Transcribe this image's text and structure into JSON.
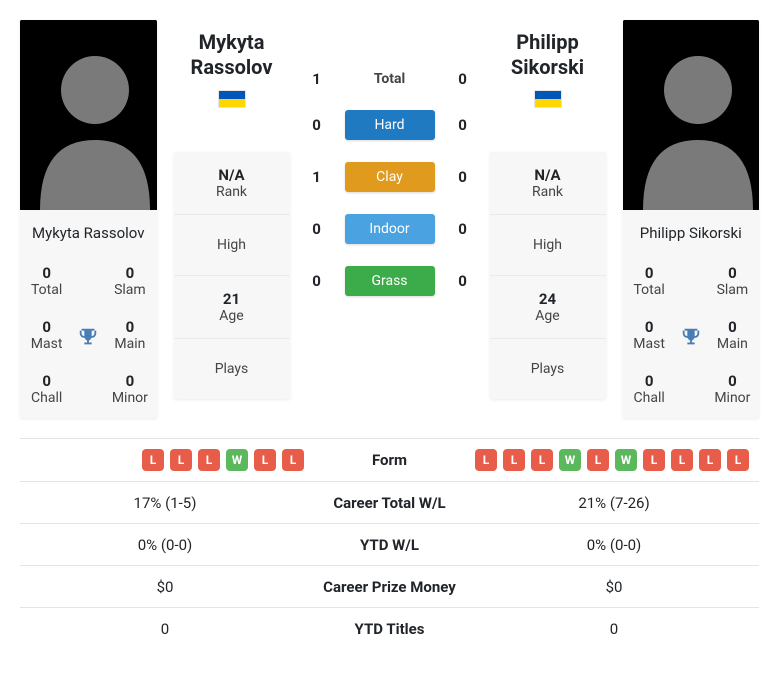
{
  "colors": {
    "loss_badge": "#e85d4a",
    "win_badge": "#5cb85c",
    "card_bg": "#f7f7f7",
    "trophy": "#4a7db5",
    "hard": "#1f7ac2",
    "clay": "#e09b1f",
    "indoor": "#4aa3e0",
    "grass": "#3cab4a",
    "silhouette": "#7a7a7a"
  },
  "left": {
    "name": "Mykyta Rassolov",
    "first": "Mykyta",
    "last": "Rassolov",
    "flag": "ukraine",
    "stats": {
      "total": "0",
      "slam": "0",
      "mast": "0",
      "main": "0",
      "chall": "0",
      "minor": "0"
    },
    "labels": {
      "total": "Total",
      "slam": "Slam",
      "mast": "Mast",
      "main": "Main",
      "chall": "Chall",
      "minor": "Minor"
    },
    "info": {
      "rank": "N/A",
      "high": "",
      "age": "21",
      "plays": ""
    }
  },
  "right": {
    "name": "Philipp Sikorski",
    "first": "Philipp",
    "last": "Sikorski",
    "flag": "ukraine",
    "stats": {
      "total": "0",
      "slam": "0",
      "mast": "0",
      "main": "0",
      "chall": "0",
      "minor": "0"
    },
    "labels": {
      "total": "Total",
      "slam": "Slam",
      "mast": "Mast",
      "main": "Main",
      "chall": "Chall",
      "minor": "Minor"
    },
    "info": {
      "rank": "N/A",
      "high": "",
      "age": "24",
      "plays": ""
    }
  },
  "info_labels": {
    "rank": "Rank",
    "high": "High",
    "age": "Age",
    "plays": "Plays"
  },
  "h2h": {
    "rows": [
      {
        "left": "1",
        "label": "Total",
        "right": "0",
        "pill": false
      },
      {
        "left": "0",
        "label": "Hard",
        "right": "0",
        "pill": true,
        "color": "#1f7ac2"
      },
      {
        "left": "1",
        "label": "Clay",
        "right": "0",
        "pill": true,
        "color": "#e09b1f"
      },
      {
        "left": "0",
        "label": "Indoor",
        "right": "0",
        "pill": true,
        "color": "#4aa3e0"
      },
      {
        "left": "0",
        "label": "Grass",
        "right": "0",
        "pill": true,
        "color": "#3cab4a"
      }
    ]
  },
  "table": {
    "headers": [
      "Form",
      "Career Total W/L",
      "YTD W/L",
      "Career Prize Money",
      "YTD Titles"
    ],
    "left_form": [
      "L",
      "L",
      "L",
      "W",
      "L",
      "L"
    ],
    "right_form": [
      "L",
      "L",
      "L",
      "W",
      "L",
      "W",
      "L",
      "L",
      "L",
      "L"
    ],
    "rows": [
      {
        "left": "17% (1-5)",
        "label": "Career Total W/L",
        "right": "21% (7-26)"
      },
      {
        "left": "0% (0-0)",
        "label": "YTD W/L",
        "right": "0% (0-0)"
      },
      {
        "left": "$0",
        "label": "Career Prize Money",
        "right": "$0"
      },
      {
        "left": "0",
        "label": "YTD Titles",
        "right": "0"
      }
    ],
    "form_label": "Form"
  }
}
